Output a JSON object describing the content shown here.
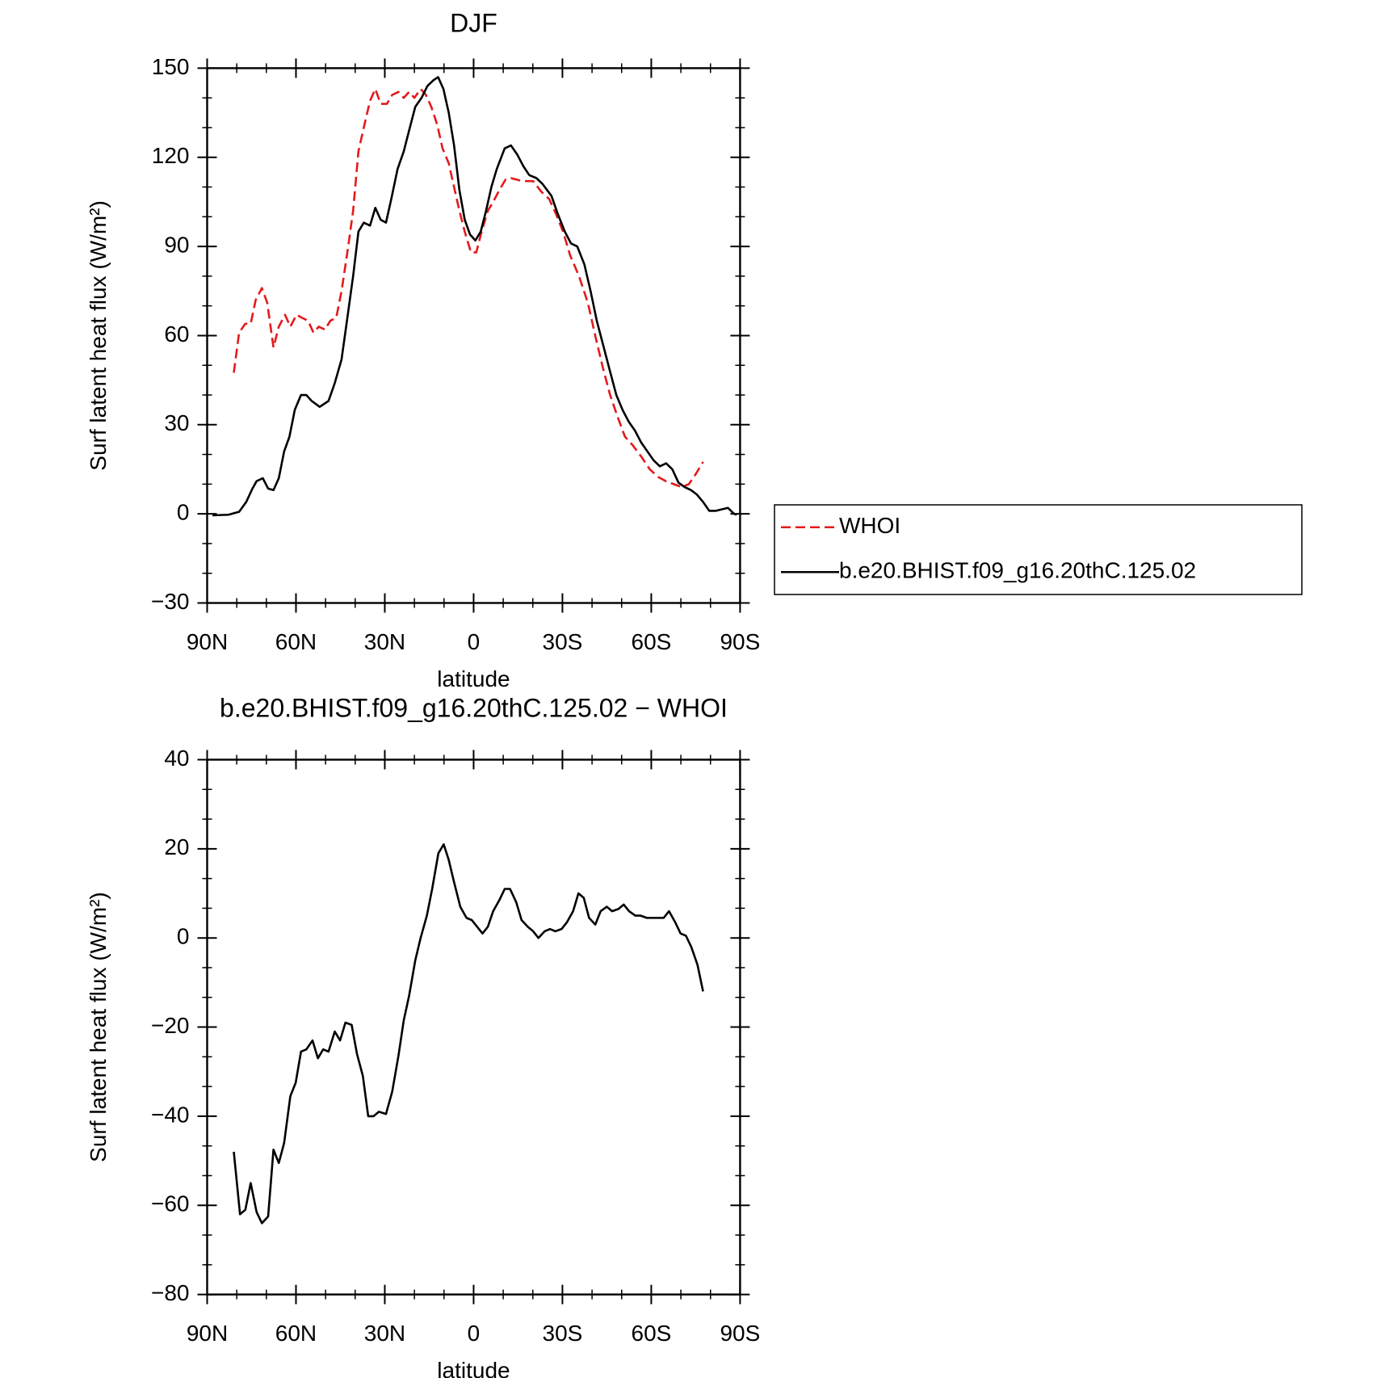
{
  "chart_data": [
    {
      "type": "line",
      "title": "DJF",
      "xlabel": "latitude",
      "ylabel": "Surf latent heat flux (W/m²)",
      "xlim": [
        90,
        -90
      ],
      "xticks": [
        {
          "value": 90,
          "label": "90N"
        },
        {
          "value": 60,
          "label": "60N"
        },
        {
          "value": 30,
          "label": "30N"
        },
        0,
        {
          "value": -30,
          "label": "30S"
        },
        {
          "value": -60,
          "label": "60S"
        },
        {
          "value": -90,
          "label": "90S"
        }
      ],
      "ylim": [
        -30,
        150
      ],
      "yticks": [
        {
          "value": -30,
          "label": "−30"
        },
        0,
        30,
        60,
        90,
        120,
        150
      ],
      "legend": "right",
      "series": [
        {
          "name": "WHOI",
          "color": "#e41a1c",
          "dash": true,
          "x": [
            81,
            79.2,
            77.1,
            75.3,
            73.6,
            71.5,
            69.7,
            67.6,
            65.8,
            63.7,
            61.9,
            59.8,
            58,
            55.9,
            54.1,
            52.3,
            50.2,
            48.4,
            46.4,
            44.6,
            42.5,
            40.7,
            38.9,
            37.1,
            35,
            33.2,
            31.4,
            29.3,
            27.5,
            25.4,
            23.6,
            21.8,
            20,
            17.9,
            16.1,
            14.3,
            12.3,
            10.5,
            8.4,
            6.6,
            4.8,
            3,
            0.9,
            -0.9,
            -2.7,
            -4.8,
            -6.6,
            -8.7,
            -10.8,
            -12.6,
            -16.5,
            -20.1,
            -22.8,
            -25.5,
            -27.8,
            -30.2,
            -32.6,
            -35.6,
            -38.6,
            -41.3,
            -43.7,
            -46.1,
            -48.5,
            -51.1,
            -53.8,
            -56.8,
            -59.5,
            -62.2,
            -64.9,
            -67.6,
            -70.3,
            -72.7,
            -75.1,
            -77.5
          ],
          "values": [
            47.5,
            61,
            64,
            64,
            72,
            76,
            71,
            56,
            63,
            67,
            63,
            67,
            66,
            65,
            61,
            63,
            62,
            65,
            66,
            75,
            89,
            102,
            122,
            130,
            139,
            143,
            138,
            138,
            141,
            142,
            140,
            142,
            140,
            143,
            141,
            137,
            131,
            123,
            118,
            110,
            102,
            95,
            88,
            88,
            95,
            102,
            105,
            109,
            112.5,
            113,
            112,
            112,
            108.5,
            106,
            101,
            95,
            87,
            80,
            71,
            59,
            49,
            40,
            33,
            26,
            23,
            19,
            15,
            12.5,
            11,
            10,
            9,
            10,
            13.5,
            17.5
          ]
        },
        {
          "name": "b.e20.BHIST.f09_g16.20thC.125.02",
          "color": "#000000",
          "dash": false,
          "x": [
            88.2,
            82.8,
            79.2,
            76.8,
            74.7,
            73.3,
            71.2,
            69.4,
            67.6,
            65.8,
            64,
            62.2,
            60.4,
            58.3,
            56.5,
            54.7,
            52,
            49,
            46.9,
            44.6,
            42.5,
            40.7,
            38.9,
            37.1,
            35,
            33.2,
            31.4,
            29.6,
            27.8,
            25.7,
            23.6,
            21.8,
            19.7,
            17.6,
            15.6,
            13.5,
            12,
            10.2,
            8.4,
            6.6,
            4.8,
            3,
            1.2,
            -0.6,
            -2.4,
            -4.2,
            -6,
            -7.8,
            -10.5,
            -12.6,
            -14.7,
            -16.8,
            -18.8,
            -21.2,
            -23.3,
            -26.3,
            -28.4,
            -30.8,
            -32.9,
            -35,
            -37.4,
            -39.5,
            -41.6,
            -43.7,
            -45.8,
            -48.2,
            -50.3,
            -52.4,
            -54.5,
            -56.6,
            -58.7,
            -60.8,
            -62.9,
            -65,
            -67.1,
            -69.2,
            -71.3,
            -73.4,
            -75.4,
            -77.5,
            -79.6,
            -81.7,
            -83.8,
            -85.9,
            -88,
            -88.9
          ],
          "values": [
            -0.5,
            -0.3,
            0.7,
            4,
            8.5,
            11,
            12,
            8.5,
            8,
            12,
            21,
            26,
            35,
            40,
            40,
            38,
            36,
            38,
            44,
            52,
            67,
            80,
            95,
            98,
            97,
            103,
            99,
            98,
            106,
            116,
            122,
            129,
            137,
            140,
            144,
            146,
            147,
            143,
            135,
            124,
            109,
            99,
            94,
            92,
            95,
            102,
            110,
            116,
            123,
            124,
            121,
            117,
            114,
            113,
            111,
            107,
            101,
            95,
            91,
            90,
            84,
            75,
            65,
            57,
            49,
            40,
            35,
            31,
            28,
            24,
            21,
            18,
            16,
            17,
            15,
            10.5,
            9,
            8,
            6.5,
            4,
            1,
            1,
            1.5,
            2,
            0,
            -0.3
          ]
        }
      ]
    },
    {
      "type": "line",
      "title": "b.e20.BHIST.f09_g16.20thC.125.02 − WHOI",
      "xlabel": "latitude",
      "ylabel": "Surf latent heat flux (W/m²)",
      "xlim": [
        90,
        -90
      ],
      "xticks": [
        {
          "value": 90,
          "label": "90N"
        },
        {
          "value": 60,
          "label": "60N"
        },
        {
          "value": 30,
          "label": "30N"
        },
        0,
        {
          "value": -30,
          "label": "30S"
        },
        {
          "value": -60,
          "label": "60S"
        },
        {
          "value": -90,
          "label": "90S"
        }
      ],
      "ylim": [
        -80,
        40
      ],
      "yticks": [
        {
          "value": -80,
          "label": "−80"
        },
        {
          "value": -60,
          "label": "−60"
        },
        {
          "value": -40,
          "label": "−40"
        },
        {
          "value": -20,
          "label": "−20"
        },
        0,
        20,
        40
      ],
      "series": [
        {
          "color": "#000000",
          "dash": false,
          "x": [
            81,
            78.9,
            77.1,
            75.3,
            73.3,
            71.5,
            69.4,
            67.6,
            65.8,
            64,
            61.9,
            60.1,
            58.3,
            56.5,
            54.4,
            52.6,
            50.8,
            49,
            46.9,
            45.1,
            43.3,
            41.2,
            39.4,
            37.4,
            35.6,
            33.8,
            32,
            29.6,
            27.5,
            25.4,
            23.6,
            21.8,
            19.7,
            17.9,
            15.8,
            14,
            11.9,
            10.1,
            8.4,
            6.6,
            4.5,
            2.4,
            0.6,
            -1.2,
            -3,
            -4.8,
            -6.6,
            -8.7,
            -10.5,
            -12.3,
            -14.4,
            -16.2,
            -18.3,
            -20.1,
            -21.9,
            -24,
            -25.8,
            -27.6,
            -29.7,
            -31.5,
            -33.6,
            -35.4,
            -37.2,
            -39,
            -41.1,
            -42.9,
            -45,
            -46.8,
            -48.9,
            -50.7,
            -52.5,
            -54.6,
            -56.4,
            -58.5,
            -60.3,
            -62.4,
            -64.2,
            -66,
            -68.1,
            -69.9,
            -71.7,
            -73.5,
            -75.6,
            -77.5
          ],
          "values": [
            -48,
            -62,
            -61,
            -55,
            -61.5,
            -64,
            -62.5,
            -47.5,
            -50.5,
            -46,
            -35.5,
            -32.5,
            -25.5,
            -25,
            -23,
            -27,
            -25,
            -25.5,
            -21,
            -23,
            -19,
            -19.5,
            -26,
            -31,
            -40,
            -40,
            -39,
            -39.5,
            -34.5,
            -26.5,
            -18.5,
            -13,
            -5,
            0,
            5,
            11,
            19,
            21,
            17.5,
            12.5,
            7,
            4.5,
            4,
            2.5,
            1,
            2.5,
            6,
            8.5,
            11,
            11,
            8,
            4,
            2.5,
            1.5,
            0,
            1.5,
            2,
            1.5,
            2,
            3.5,
            6,
            10,
            9,
            4.5,
            3,
            6,
            7,
            6,
            6.5,
            7.5,
            6,
            5,
            5,
            4.5,
            4.5,
            4.5,
            4.5,
            6,
            3.5,
            1,
            0.5,
            -2,
            -6,
            -12
          ]
        }
      ]
    }
  ]
}
